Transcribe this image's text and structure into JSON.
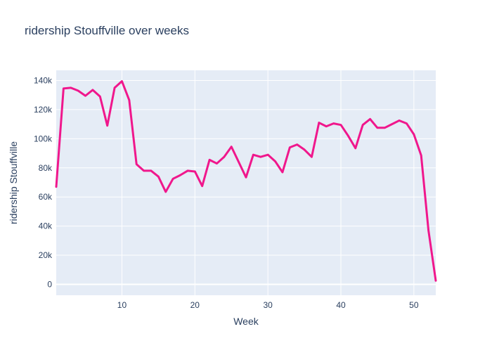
{
  "chart_data": {
    "type": "line",
    "title": "ridership Stouffville over weeks",
    "xlabel": "Week",
    "ylabel": "ridership Stouffville",
    "xlim": [
      1,
      53
    ],
    "ylim": [
      -7500,
      147000
    ],
    "x_ticks": [
      10,
      20,
      30,
      40,
      50
    ],
    "y_ticks": [
      0,
      20000,
      40000,
      60000,
      80000,
      100000,
      120000,
      140000
    ],
    "y_tick_labels": [
      "0",
      "20k",
      "40k",
      "60k",
      "80k",
      "100k",
      "120k",
      "140k"
    ],
    "grid": true,
    "colors": {
      "line": "#f0178c",
      "plot_bg": "#e5ecf6",
      "grid": "#ffffff",
      "text": "#2a3f5f"
    },
    "series": [
      {
        "x": [
          1,
          2,
          3,
          4,
          5,
          6,
          7,
          8,
          9,
          10,
          11,
          12,
          13,
          14,
          15,
          16,
          17,
          18,
          19,
          20,
          21,
          22,
          23,
          24,
          25,
          26,
          27,
          28,
          29,
          30,
          31,
          32,
          33,
          34,
          35,
          36,
          37,
          38,
          39,
          40,
          41,
          42,
          43,
          44,
          45,
          46,
          47,
          48,
          49,
          50,
          51,
          52,
          53
        ],
        "values": [
          67000,
          134500,
          135000,
          133000,
          129500,
          133500,
          129000,
          109000,
          135000,
          139500,
          126500,
          82500,
          78000,
          78000,
          74000,
          63500,
          72500,
          75000,
          78000,
          77500,
          67500,
          85500,
          83000,
          87500,
          94500,
          84000,
          73500,
          89000,
          87500,
          89000,
          84500,
          77000,
          94000,
          96000,
          92500,
          87500,
          111000,
          108500,
          110500,
          109500,
          102000,
          93500,
          109500,
          113500,
          107500,
          107500,
          110000,
          112500,
          110500,
          103000,
          88500,
          37000,
          2500
        ]
      }
    ]
  }
}
